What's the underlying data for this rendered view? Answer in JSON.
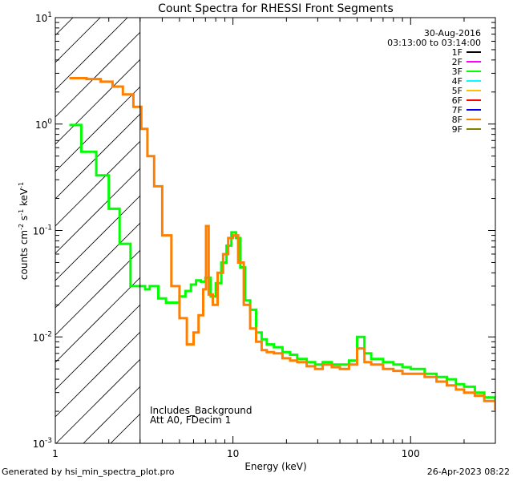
{
  "chart_data": {
    "type": "line",
    "title": "Count Spectra for RHESSI Front Segments",
    "xlabel": "Energy (keV)",
    "ylabel_parts": {
      "counts": "counts cm",
      "cm_exp": "-2",
      "s": " s",
      "s_exp": "-1",
      "kev": " keV",
      "kev_exp": "-1"
    },
    "xscale": "log",
    "yscale": "log",
    "xlim": [
      1,
      300
    ],
    "ylim": [
      0.001,
      10
    ],
    "x_ticks": [
      {
        "value": 1,
        "label": "1"
      },
      {
        "value": 10,
        "label": "10"
      },
      {
        "value": 100,
        "label": "100"
      }
    ],
    "y_ticks": [
      {
        "value": 0.001,
        "base": "10",
        "exp": "-3"
      },
      {
        "value": 0.01,
        "base": "10",
        "exp": "-2"
      },
      {
        "value": 0.1,
        "base": "10",
        "exp": "-1"
      },
      {
        "value": 1,
        "base": "10",
        "exp": "0"
      },
      {
        "value": 10,
        "base": "10",
        "exp": "1"
      }
    ],
    "shaded_region": {
      "x_range": [
        1,
        3
      ],
      "style": "diagonal-hatch"
    },
    "date": "30-Aug-2016",
    "time_range": "03:13:00 to 03:14:00",
    "legend": [
      {
        "name": "1F",
        "color": "#000000"
      },
      {
        "name": "2F",
        "color": "#ff00ff"
      },
      {
        "name": "3F",
        "color": "#00ff00"
      },
      {
        "name": "4F",
        "color": "#00ffff"
      },
      {
        "name": "5F",
        "color": "#ffc000"
      },
      {
        "name": "6F",
        "color": "#ff0000"
      },
      {
        "name": "7F",
        "color": "#0000ff"
      },
      {
        "name": "8F",
        "color": "#ff8000"
      },
      {
        "name": "9F",
        "color": "#808000"
      }
    ],
    "annotations": [
      "Includes_Background",
      "Att A0, FDecim 1"
    ],
    "series": [
      {
        "name": "3F",
        "color": "#00ff00",
        "points": [
          [
            1.2,
            0.98
          ],
          [
            1.4,
            0.55
          ],
          [
            1.7,
            0.33
          ],
          [
            2.0,
            0.16
          ],
          [
            2.3,
            0.075
          ],
          [
            2.65,
            0.03
          ],
          [
            3.0,
            0.03
          ],
          [
            3.2,
            0.028
          ],
          [
            3.4,
            0.03
          ],
          [
            3.8,
            0.023
          ],
          [
            4.2,
            0.021
          ],
          [
            4.6,
            0.021
          ],
          [
            5.0,
            0.024
          ],
          [
            5.4,
            0.027
          ],
          [
            5.8,
            0.031
          ],
          [
            6.2,
            0.034
          ],
          [
            6.6,
            0.033
          ],
          [
            7.0,
            0.036
          ],
          [
            7.5,
            0.024
          ],
          [
            8.0,
            0.032
          ],
          [
            8.6,
            0.05
          ],
          [
            9.2,
            0.072
          ],
          [
            9.8,
            0.096
          ],
          [
            10.4,
            0.085
          ],
          [
            11.0,
            0.045
          ],
          [
            11.7,
            0.022
          ],
          [
            12.5,
            0.018
          ],
          [
            13.5,
            0.011
          ],
          [
            14.5,
            0.0095
          ],
          [
            15.5,
            0.0085
          ],
          [
            17,
            0.008
          ],
          [
            19,
            0.0072
          ],
          [
            21,
            0.0068
          ],
          [
            23,
            0.0062
          ],
          [
            26,
            0.0058
          ],
          [
            29,
            0.0055
          ],
          [
            32,
            0.0058
          ],
          [
            36,
            0.0055
          ],
          [
            40,
            0.0055
          ],
          [
            45,
            0.006
          ],
          [
            50,
            0.01
          ],
          [
            55,
            0.007
          ],
          [
            60,
            0.0062
          ],
          [
            70,
            0.0058
          ],
          [
            80,
            0.0055
          ],
          [
            90,
            0.0052
          ],
          [
            100,
            0.005
          ],
          [
            120,
            0.0045
          ],
          [
            140,
            0.0042
          ],
          [
            160,
            0.004
          ],
          [
            180,
            0.0036
          ],
          [
            200,
            0.0034
          ],
          [
            230,
            0.003
          ],
          [
            260,
            0.0027
          ],
          [
            300,
            0.0022
          ]
        ]
      },
      {
        "name": "8F",
        "color": "#ff8000",
        "points": [
          [
            1.2,
            2.7
          ],
          [
            1.5,
            2.65
          ],
          [
            1.8,
            2.5
          ],
          [
            2.1,
            2.25
          ],
          [
            2.4,
            1.9
          ],
          [
            2.75,
            1.45
          ],
          [
            3.05,
            0.9
          ],
          [
            3.3,
            0.5
          ],
          [
            3.6,
            0.26
          ],
          [
            4.0,
            0.09
          ],
          [
            4.5,
            0.03
          ],
          [
            5.0,
            0.015
          ],
          [
            5.5,
            0.0085
          ],
          [
            6.0,
            0.011
          ],
          [
            6.4,
            0.016
          ],
          [
            6.8,
            0.028
          ],
          [
            7.05,
            0.11
          ],
          [
            7.3,
            0.025
          ],
          [
            7.7,
            0.02
          ],
          [
            8.2,
            0.04
          ],
          [
            8.8,
            0.06
          ],
          [
            9.4,
            0.085
          ],
          [
            10.0,
            0.09
          ],
          [
            10.7,
            0.05
          ],
          [
            11.5,
            0.02
          ],
          [
            12.5,
            0.012
          ],
          [
            13.5,
            0.009
          ],
          [
            14.5,
            0.0075
          ],
          [
            15.5,
            0.0072
          ],
          [
            17,
            0.007
          ],
          [
            19,
            0.0063
          ],
          [
            21,
            0.006
          ],
          [
            23,
            0.0058
          ],
          [
            26,
            0.0053
          ],
          [
            29,
            0.005
          ],
          [
            32,
            0.0055
          ],
          [
            36,
            0.0052
          ],
          [
            40,
            0.005
          ],
          [
            45,
            0.0055
          ],
          [
            50,
            0.0078
          ],
          [
            55,
            0.0058
          ],
          [
            60,
            0.0055
          ],
          [
            70,
            0.005
          ],
          [
            80,
            0.0048
          ],
          [
            90,
            0.0045
          ],
          [
            100,
            0.0045
          ],
          [
            120,
            0.0042
          ],
          [
            140,
            0.0038
          ],
          [
            160,
            0.0035
          ],
          [
            180,
            0.0032
          ],
          [
            200,
            0.003
          ],
          [
            230,
            0.0028
          ],
          [
            260,
            0.0025
          ],
          [
            300,
            0.0021
          ]
        ]
      }
    ]
  },
  "footer": {
    "generated_by": "Generated by hsi_min_spectra_plot.pro",
    "timestamp": "26-Apr-2023 08:22"
  }
}
